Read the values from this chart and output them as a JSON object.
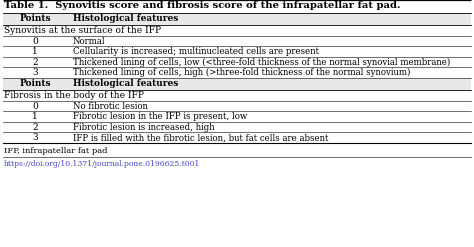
{
  "title": "Table 1.  Synovitis score and fibrosis score of the infrapatellar fat pad.",
  "col_headers": [
    "Points",
    "Histological features"
  ],
  "section1_label": "Synovitis at the surface of the IFP",
  "section1_rows": [
    [
      "0",
      "Normal"
    ],
    [
      "1",
      "Cellularity is increased; multinucleated cells are present"
    ],
    [
      "2",
      "Thickened lining of cells, low (<three-fold thickness of the normal synovial membrane)"
    ],
    [
      "3",
      "Thickened lining of cells, high (>three-fold thickness of the normal synovium)"
    ]
  ],
  "subheader2": [
    "Points",
    "Histological features"
  ],
  "section2_label": "Fibrosis in the body of the IFP",
  "section2_rows": [
    [
      "0",
      "No fibrotic lesion"
    ],
    [
      "1",
      "Fibrotic lesion in the IFP is present, low"
    ],
    [
      "2",
      "Fibrotic lesion is increased, high"
    ],
    [
      "3",
      "IFP is filled with the fibrotic lesion, but fat cells are absent"
    ]
  ],
  "footnote1": "IFP, infrapatellar fat pad",
  "footnote2": "https://doi.org/10.1371/journal.pone.0196625.t001",
  "bg_color": "#ffffff",
  "text_color": "#000000",
  "link_color": "#4444cc",
  "font_size": 6.5,
  "title_font_size": 7.2
}
